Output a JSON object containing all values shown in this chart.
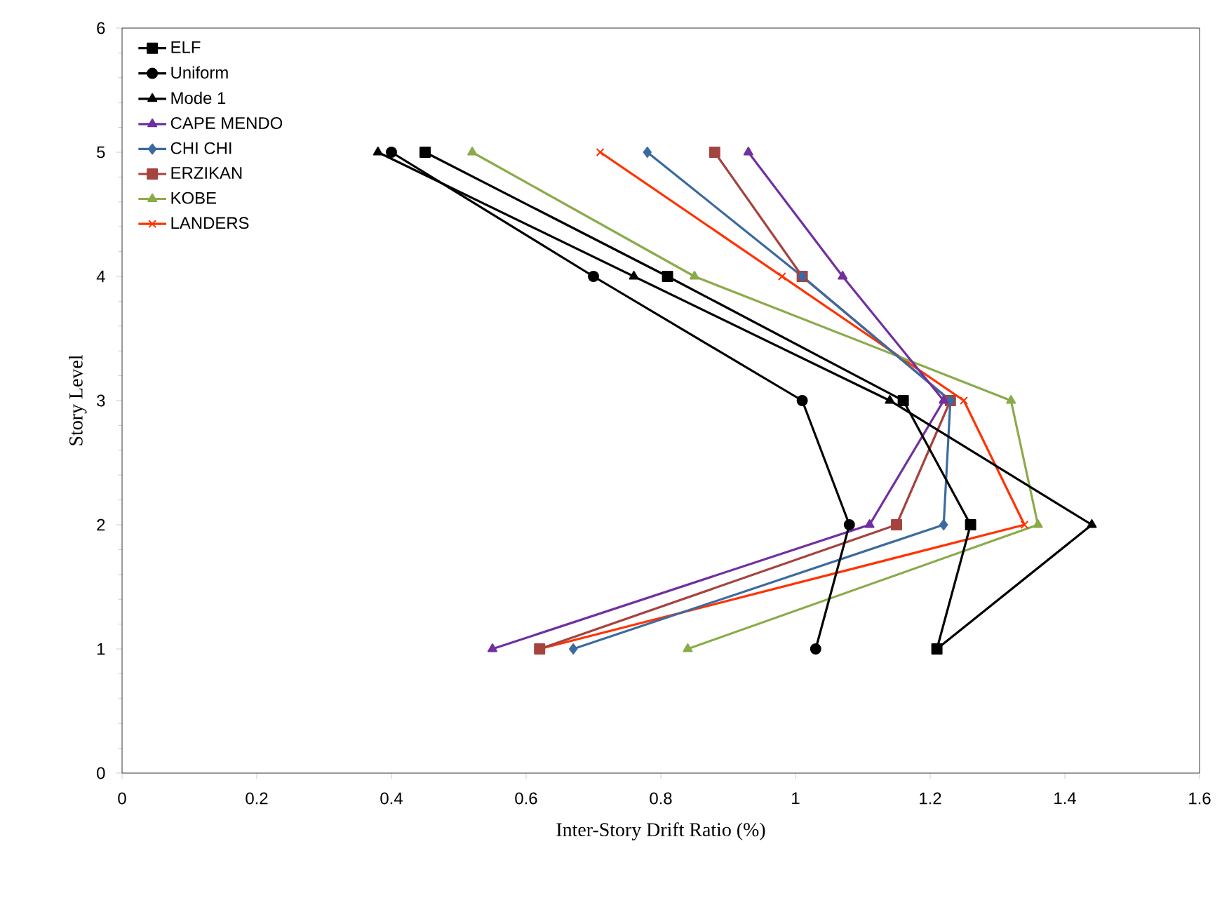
{
  "chart_data": {
    "type": "line",
    "xlabel": "Inter-Story Drift Ratio (%)",
    "ylabel": "Story Level",
    "xlim": [
      0,
      1.6
    ],
    "xticks": [
      0,
      0.2,
      0.4,
      0.6,
      0.8,
      1,
      1.2,
      1.4,
      1.6
    ],
    "ylim": [
      0,
      6
    ],
    "yticks": [
      0,
      1,
      2,
      3,
      4,
      5,
      6
    ],
    "grid": false,
    "legend": "top left",
    "line_style": "solid",
    "series": [
      {
        "name": "ELF",
        "color": "#000000",
        "marker": "square",
        "x": [
          1.21,
          1.26,
          1.16,
          0.81,
          0.45
        ],
        "values": [
          1,
          2,
          3,
          4,
          5
        ]
      },
      {
        "name": "Uniform",
        "color": "#000000",
        "marker": "circle",
        "x": [
          1.03,
          1.08,
          1.01,
          0.7,
          0.4
        ],
        "values": [
          1,
          2,
          3,
          4,
          5
        ]
      },
      {
        "name": "Mode 1",
        "color": "#000000",
        "marker": "triangle",
        "x": [
          1.21,
          1.44,
          1.14,
          0.76,
          0.38
        ],
        "values": [
          1,
          2,
          3,
          4,
          5
        ]
      },
      {
        "name": "CAPE MENDO",
        "color": "#7030a0",
        "marker": "triangle",
        "x": [
          0.55,
          1.11,
          1.22,
          1.07,
          0.93
        ],
        "values": [
          1,
          2,
          3,
          4,
          5
        ]
      },
      {
        "name": "CHI CHI",
        "color": "#3c6aa0",
        "marker": "diamond",
        "x": [
          0.67,
          1.22,
          1.23,
          1.01,
          0.78
        ],
        "values": [
          1,
          2,
          3,
          4,
          5
        ]
      },
      {
        "name": "ERZIKAN",
        "color": "#a5433f",
        "marker": "square",
        "x": [
          0.62,
          1.15,
          1.23,
          1.01,
          0.88
        ],
        "values": [
          1,
          2,
          3,
          4,
          5
        ]
      },
      {
        "name": "KOBE",
        "color": "#8aab4a",
        "marker": "triangle",
        "x": [
          0.84,
          1.36,
          1.32,
          0.85,
          0.52
        ],
        "values": [
          1,
          2,
          3,
          4,
          5
        ]
      },
      {
        "name": "LANDERS",
        "color": "#ff3300",
        "marker": "cross",
        "x": [
          0.62,
          1.34,
          1.25,
          0.98,
          0.71
        ],
        "values": [
          1,
          2,
          3,
          4,
          5
        ]
      }
    ]
  }
}
